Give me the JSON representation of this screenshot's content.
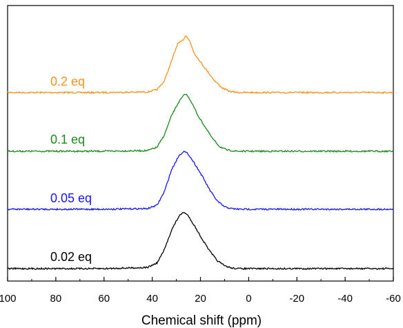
{
  "chart_data": {
    "type": "line",
    "title": "",
    "xlabel": "Chemical shift (ppm)",
    "ylabel": "",
    "xlim": [
      100,
      -60
    ],
    "x_reversed": true,
    "grid": false,
    "x_ticks": [
      "100",
      "80",
      "60",
      "40",
      "20",
      "0",
      "-20",
      "-40",
      "-60"
    ],
    "x_tick_values": [
      100,
      80,
      60,
      40,
      20,
      0,
      -20,
      -40,
      -60
    ],
    "series": [
      {
        "name": "0.2 eq",
        "color": "#f7931e",
        "peak_center_ppm": 26,
        "points": [
          [
            100,
            0
          ],
          [
            60,
            0
          ],
          [
            42,
            0.01
          ],
          [
            38,
            0.05
          ],
          [
            35,
            0.2
          ],
          [
            32,
            0.55
          ],
          [
            29.5,
            0.85
          ],
          [
            27.5,
            0.9
          ],
          [
            26,
            1.0
          ],
          [
            24.5,
            0.9
          ],
          [
            22.5,
            0.68
          ],
          [
            18,
            0.42
          ],
          [
            14,
            0.2
          ],
          [
            11,
            0.08
          ],
          [
            8,
            0.02
          ],
          [
            4,
            0
          ],
          [
            -60,
            0
          ]
        ]
      },
      {
        "name": "0.1 eq",
        "color": "#1a8a1a",
        "peak_center_ppm": 26.5,
        "points": [
          [
            100,
            0
          ],
          [
            60,
            0
          ],
          [
            42,
            0.01
          ],
          [
            38,
            0.07
          ],
          [
            35,
            0.28
          ],
          [
            32,
            0.62
          ],
          [
            29,
            0.86
          ],
          [
            27,
            0.97
          ],
          [
            26,
            1.0
          ],
          [
            24,
            0.88
          ],
          [
            21,
            0.62
          ],
          [
            18,
            0.42
          ],
          [
            15,
            0.22
          ],
          [
            12,
            0.08
          ],
          [
            9,
            0.02
          ],
          [
            5,
            0
          ],
          [
            -60,
            0
          ]
        ]
      },
      {
        "name": "0.05 eq",
        "color": "#1414ff",
        "peak_center_ppm": 27,
        "points": [
          [
            100,
            0
          ],
          [
            60,
            0
          ],
          [
            42,
            0.01
          ],
          [
            38,
            0.07
          ],
          [
            35,
            0.3
          ],
          [
            32,
            0.68
          ],
          [
            29,
            0.92
          ],
          [
            27,
            1.0
          ],
          [
            25,
            0.95
          ],
          [
            22,
            0.76
          ],
          [
            19,
            0.55
          ],
          [
            16,
            0.32
          ],
          [
            13,
            0.14
          ],
          [
            10,
            0.04
          ],
          [
            7,
            0.01
          ],
          [
            4,
            0
          ],
          [
            -60,
            0
          ]
        ]
      },
      {
        "name": "0.02 eq",
        "color": "#000000",
        "peak_center_ppm": 27,
        "points": [
          [
            100,
            0
          ],
          [
            60,
            0
          ],
          [
            42,
            0.02
          ],
          [
            38,
            0.1
          ],
          [
            35,
            0.33
          ],
          [
            32,
            0.68
          ],
          [
            29,
            0.92
          ],
          [
            27,
            1.0
          ],
          [
            25,
            0.93
          ],
          [
            22,
            0.72
          ],
          [
            19,
            0.5
          ],
          [
            16,
            0.3
          ],
          [
            13,
            0.14
          ],
          [
            10,
            0.05
          ],
          [
            7,
            0.01
          ],
          [
            4,
            0
          ],
          [
            -60,
            0
          ]
        ]
      }
    ]
  }
}
